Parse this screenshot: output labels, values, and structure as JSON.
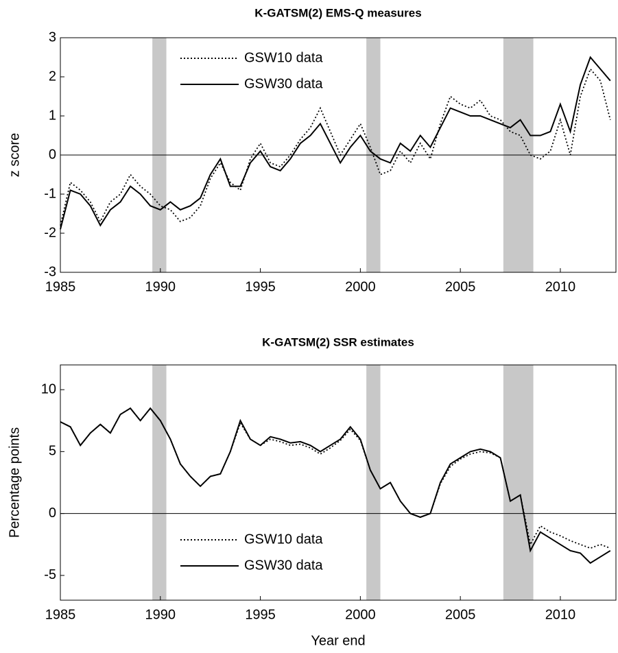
{
  "chart_data": [
    {
      "type": "line",
      "title": "K-GATSM(2) EMS-Q measures",
      "ylabel": "z score",
      "xlim": [
        1985,
        2012.78
      ],
      "xticks": [
        1985,
        1990,
        1995,
        2000,
        2005,
        2010
      ],
      "ylim": [
        -3,
        3
      ],
      "yticks": [
        -3,
        -2,
        -1,
        0,
        1,
        2,
        3
      ],
      "hline": 0,
      "legend": "upper left",
      "shaded_periods": [
        [
          1989.6,
          1990.3
        ],
        [
          2000.3,
          2001.0
        ],
        [
          2007.15,
          2008.65
        ]
      ],
      "x": [
        1985,
        1985.5,
        1986,
        1986.5,
        1987,
        1987.5,
        1988,
        1988.5,
        1989,
        1989.5,
        1990,
        1990.5,
        1991,
        1991.5,
        1992,
        1992.5,
        1993,
        1993.5,
        1994,
        1994.5,
        1995,
        1995.5,
        1996,
        1996.5,
        1997,
        1997.5,
        1998,
        1998.5,
        1999,
        1999.5,
        2000,
        2000.5,
        2001,
        2001.5,
        2002,
        2002.5,
        2003,
        2003.5,
        2004,
        2004.5,
        2005,
        2005.5,
        2006,
        2006.5,
        2007,
        2007.5,
        2008,
        2008.5,
        2009,
        2009.5,
        2010,
        2010.5,
        2011,
        2011.5,
        2012,
        2012.5
      ],
      "series": [
        {
          "name": "GSW10 data",
          "color": "#000000",
          "linestyle": "dotted",
          "values": [
            -1.8,
            -0.7,
            -0.9,
            -1.2,
            -1.7,
            -1.2,
            -1.0,
            -0.5,
            -0.8,
            -1.0,
            -1.3,
            -1.4,
            -1.7,
            -1.6,
            -1.3,
            -0.6,
            -0.2,
            -0.7,
            -0.9,
            -0.1,
            0.3,
            -0.2,
            -0.3,
            0.0,
            0.4,
            0.7,
            1.2,
            0.6,
            0.0,
            0.4,
            0.8,
            0.2,
            -0.5,
            -0.4,
            0.1,
            -0.2,
            0.3,
            -0.1,
            0.8,
            1.5,
            1.3,
            1.2,
            1.4,
            1.0,
            0.9,
            0.6,
            0.5,
            0.0,
            -0.1,
            0.1,
            0.9,
            0.0,
            1.5,
            2.2,
            1.9,
            0.9
          ]
        },
        {
          "name": "GSW30 data",
          "color": "#000000",
          "linestyle": "solid",
          "values": [
            -1.9,
            -0.9,
            -1.0,
            -1.3,
            -1.8,
            -1.4,
            -1.2,
            -0.8,
            -1.0,
            -1.3,
            -1.4,
            -1.2,
            -1.4,
            -1.3,
            -1.1,
            -0.5,
            -0.1,
            -0.8,
            -0.8,
            -0.2,
            0.1,
            -0.3,
            -0.4,
            -0.1,
            0.3,
            0.5,
            0.8,
            0.3,
            -0.2,
            0.2,
            0.5,
            0.1,
            -0.1,
            -0.2,
            0.3,
            0.1,
            0.5,
            0.2,
            0.7,
            1.2,
            1.1,
            1.0,
            1.0,
            0.9,
            0.8,
            0.7,
            0.9,
            0.5,
            0.5,
            0.6,
            1.3,
            0.6,
            1.8,
            2.5,
            2.2,
            1.9
          ]
        }
      ]
    },
    {
      "type": "line",
      "title": "K-GATSM(2) SSR estimates",
      "ylabel": "Percentage points",
      "xlabel": "Year end",
      "xlim": [
        1985,
        2012.78
      ],
      "xticks": [
        1985,
        1990,
        1995,
        2000,
        2005,
        2010
      ],
      "ylim": [
        -7,
        12
      ],
      "yticks": [
        -5,
        0,
        5,
        10
      ],
      "hline": 0,
      "legend": "lower left",
      "shaded_periods": [
        [
          1989.6,
          1990.3
        ],
        [
          2000.3,
          2001.0
        ],
        [
          2007.15,
          2008.65
        ]
      ],
      "x": [
        1985,
        1985.5,
        1986,
        1986.5,
        1987,
        1987.5,
        1988,
        1988.5,
        1989,
        1989.5,
        1990,
        1990.5,
        1991,
        1991.5,
        1992,
        1992.5,
        1993,
        1993.5,
        1994,
        1994.5,
        1995,
        1995.5,
        1996,
        1996.5,
        1997,
        1997.5,
        1998,
        1998.5,
        1999,
        1999.5,
        2000,
        2000.5,
        2001,
        2001.5,
        2002,
        2002.5,
        2003,
        2003.5,
        2004,
        2004.5,
        2005,
        2005.5,
        2006,
        2006.5,
        2007,
        2007.5,
        2008,
        2008.5,
        2009,
        2009.5,
        2010,
        2010.5,
        2011,
        2011.5,
        2012,
        2012.5
      ],
      "series": [
        {
          "name": "GSW10 data",
          "color": "#000000",
          "linestyle": "dotted",
          "values": [
            7.4,
            7.0,
            5.5,
            6.5,
            7.2,
            6.5,
            8.0,
            8.5,
            7.5,
            8.5,
            7.5,
            6.0,
            4.0,
            3.0,
            2.2,
            3.0,
            3.2,
            5.0,
            7.3,
            6.0,
            5.5,
            6.0,
            5.8,
            5.5,
            5.6,
            5.3,
            4.8,
            5.3,
            5.9,
            6.8,
            5.9,
            3.5,
            2.0,
            2.5,
            1.0,
            0.0,
            -0.3,
            0.0,
            2.4,
            3.8,
            4.4,
            4.8,
            5.0,
            4.9,
            4.5,
            1.0,
            1.5,
            -2.5,
            -1.0,
            -1.5,
            -1.8,
            -2.2,
            -2.5,
            -2.8,
            -2.5,
            -2.8
          ]
        },
        {
          "name": "GSW30 data",
          "color": "#000000",
          "linestyle": "solid",
          "values": [
            7.4,
            7.0,
            5.5,
            6.5,
            7.2,
            6.5,
            8.0,
            8.5,
            7.5,
            8.5,
            7.5,
            6.0,
            4.0,
            3.0,
            2.2,
            3.0,
            3.2,
            5.0,
            7.5,
            6.0,
            5.5,
            6.2,
            6.0,
            5.7,
            5.8,
            5.5,
            5.0,
            5.5,
            6.0,
            7.0,
            6.0,
            3.5,
            2.0,
            2.5,
            1.0,
            0.0,
            -0.3,
            0.0,
            2.5,
            4.0,
            4.5,
            5.0,
            5.2,
            5.0,
            4.5,
            1.0,
            1.5,
            -3.0,
            -1.5,
            -2.0,
            -2.5,
            -3.0,
            -3.2,
            -4.0,
            -3.5,
            -3.0
          ]
        }
      ]
    }
  ]
}
